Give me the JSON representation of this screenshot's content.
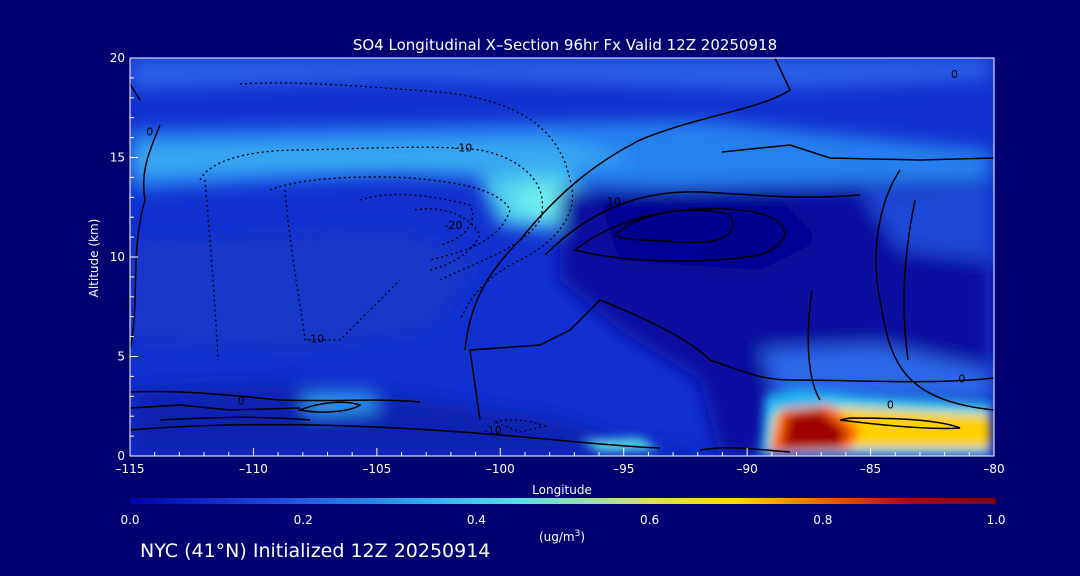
{
  "chart_data": {
    "type": "heatmap",
    "title": "SO4 Longitudinal X–Section 96hr  Fx Valid 12Z 20250918",
    "xlabel": "Longitude",
    "ylabel": "Altitude (km)",
    "xlim": [
      -115,
      -80
    ],
    "ylim": [
      0,
      20
    ],
    "x_ticks": [
      -115,
      -110,
      -105,
      -100,
      -95,
      -90,
      -85,
      -80
    ],
    "x_tick_labels": [
      "–115",
      "–110",
      "–105",
      "–100",
      "–95",
      "–90",
      "–85",
      "–80"
    ],
    "y_ticks": [
      0,
      5,
      10,
      15,
      20
    ],
    "y_tick_labels": [
      "0",
      "5",
      "10",
      "15",
      "20"
    ],
    "colorbar": {
      "min": 0.0,
      "max": 1.0,
      "ticks": [
        "0.0",
        "0.2",
        "0.4",
        "0.6",
        "0.8",
        "1.0"
      ],
      "units_label": "(ug/m",
      "units_superscript": "3",
      "units_close": ")",
      "colors": [
        "#0000b0",
        "#1f4fe0",
        "#2aa8f0",
        "#58e0e8",
        "#d8e060",
        "#ffd800",
        "#ff6000",
        "#b80000",
        "#800000"
      ]
    },
    "contour_labels": [
      {
        "text": "-10",
        "lon": -101.5,
        "alt": 15.5
      },
      {
        "text": "-20",
        "lon": -101.9,
        "alt": 11.6
      },
      {
        "text": "-10",
        "lon": -107.5,
        "alt": 5.9
      },
      {
        "text": "10",
        "lon": -95.4,
        "alt": 12.8
      },
      {
        "text": "0",
        "lon": -81.3,
        "alt": 3.9
      },
      {
        "text": "-10",
        "lon": -100.3,
        "alt": 1.3
      },
      {
        "text": "0",
        "lon": -84.2,
        "alt": 2.6
      },
      {
        "text": "0",
        "lon": -110.5,
        "alt": 2.8
      },
      {
        "text": "0",
        "lon": -114.2,
        "alt": 16.3
      },
      {
        "text": "0",
        "lon": -81.6,
        "alt": 19.2
      }
    ],
    "high_concentration_regions": [
      {
        "lon_range": [
          -89,
          -84
        ],
        "alt_range": [
          0,
          3.0
        ],
        "value": 1.0
      },
      {
        "lon_range": [
          -84,
          -80
        ],
        "alt_range": [
          0.3,
          2.2
        ],
        "value": 0.7
      },
      {
        "lon_range": [
          -100,
          -96
        ],
        "alt_range": [
          11,
          14
        ],
        "value": 0.45
      },
      {
        "lon_range": [
          -115,
          -95
        ],
        "alt_range": [
          13.5,
          15.5
        ],
        "value": 0.35
      }
    ]
  },
  "footer": "NYC (41°N) Initialized 12Z 20250914"
}
